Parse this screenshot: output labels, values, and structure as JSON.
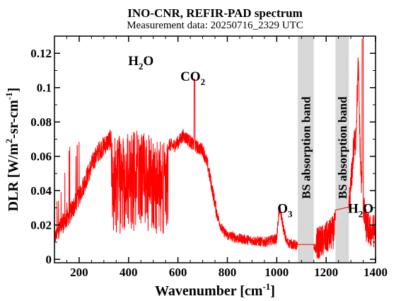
{
  "chart_data": {
    "type": "line",
    "title": "INO-CNR, REFIR-PAD spectrum",
    "subtitle": "Measurement data: 20250716_2329 UTC",
    "xlabel": {
      "main": "Wavenumber [cm",
      "sup": "-1",
      "close": "]"
    },
    "ylabel": {
      "p1": "DLR [W/m",
      "sup1": "2",
      "p2": "-sr-cm",
      "sup2": "-1",
      "p3": "]"
    },
    "xlim": [
      100,
      1400
    ],
    "ylim": [
      -0.002,
      0.13
    ],
    "x_ticks": [
      200,
      400,
      600,
      800,
      1000,
      1200,
      1400
    ],
    "y_ticks": [
      0,
      0.02,
      0.04,
      0.06,
      0.08,
      0.1,
      0.12
    ],
    "y_tick_labels": [
      "0",
      "0.02",
      "0.04",
      "0.06",
      "0.08",
      "0.1",
      "0.12"
    ],
    "grid": false,
    "line_color": "#ff0000",
    "band_color": "#d8d8d8",
    "series": [
      {
        "x": [
          100,
          120,
          140,
          160,
          180,
          200,
          220,
          240,
          260,
          280,
          300,
          320,
          340,
          360,
          380,
          400,
          420,
          440,
          460,
          480,
          500,
          520,
          540,
          560,
          580,
          600,
          620,
          640,
          660,
          680,
          700,
          720,
          740,
          760,
          780,
          800,
          850,
          900,
          950,
          1000,
          1010,
          1020,
          1030,
          1040,
          1060,
          1080,
          1090,
          1150,
          1180,
          1200,
          1230,
          1245,
          1290,
          1300,
          1310,
          1320,
          1330,
          1340,
          1350,
          1360,
          1380,
          1400
        ],
        "y": [
          0.012,
          0.018,
          0.022,
          0.026,
          0.031,
          0.037,
          0.044,
          0.051,
          0.058,
          0.063,
          0.066,
          0.069,
          0.071,
          0.073,
          0.074,
          0.075,
          0.076,
          0.076,
          0.075,
          0.074,
          0.072,
          0.07,
          0.068,
          0.067,
          0.066,
          0.068,
          0.072,
          0.07,
          0.067,
          0.065,
          0.064,
          0.055,
          0.04,
          0.025,
          0.017,
          0.014,
          0.012,
          0.011,
          0.01,
          0.012,
          0.03,
          0.024,
          0.016,
          0.01,
          0.009,
          0.008,
          0.008,
          0.006,
          0.008,
          0.01,
          0.014,
          0.02,
          0.025,
          0.04,
          0.06,
          0.07,
          0.11,
          0.05,
          0.03,
          0.018,
          0.014,
          0.015
        ]
      }
    ],
    "bands": [
      {
        "x_range": [
          1085,
          1150
        ],
        "label": "BS absorption band"
      },
      {
        "x_range": [
          1238,
          1292
        ],
        "label": "BS absorption band"
      }
    ],
    "annotations": [
      {
        "base": "H",
        "sub": "2",
        "tail": "O",
        "x": 450,
        "y": 0.113
      },
      {
        "base": "CO",
        "sub": "2",
        "tail": "",
        "x": 660,
        "y": 0.104
      },
      {
        "base": "O",
        "sub": "3",
        "tail": "",
        "x": 1033,
        "y": 0.027
      },
      {
        "base": "H",
        "sub": "2",
        "tail": "O",
        "x": 1340,
        "y": 0.027
      }
    ]
  }
}
